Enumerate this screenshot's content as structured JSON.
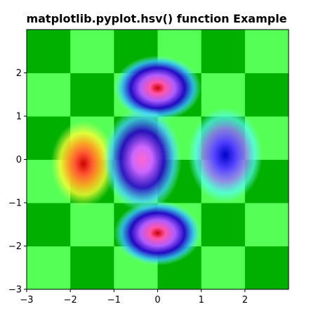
{
  "chart_data": {
    "type": "heatmap",
    "title": "matplotlib.pyplot.hsv() function Example",
    "colormap": "hsv",
    "xlabel": "",
    "ylabel": "",
    "xlim": [
      -3,
      3
    ],
    "ylim": [
      -3,
      3
    ],
    "x_ticks": [
      -3,
      -2,
      -1,
      0,
      1,
      2
    ],
    "y_ticks": [
      -3,
      -2,
      -1,
      0,
      1,
      2
    ],
    "x_tick_labels": [
      "−3",
      "−2",
      "−1",
      "0",
      "1",
      "2"
    ],
    "y_tick_labels": [
      "−3",
      "−2",
      "−1",
      "0",
      "1",
      "2"
    ],
    "checkerboard": {
      "cell_size": 1,
      "colors": [
        "#00b000",
        "#55ff55"
      ]
    },
    "gaussian_field": {
      "function": "exp(-(x^2+y^2)) smooth overlay",
      "peaks": [
        {
          "x": 0,
          "y": 1.65,
          "shape": "ring"
        },
        {
          "x": 0,
          "y": -1.7,
          "shape": "ring"
        },
        {
          "x": -1.7,
          "y": -0.1,
          "shape": "peak"
        },
        {
          "x": -0.35,
          "y": 0,
          "shape": "ring"
        },
        {
          "x": 1.55,
          "y": 0.1,
          "shape": "ring"
        }
      ]
    },
    "grid": false,
    "legend": "none"
  }
}
